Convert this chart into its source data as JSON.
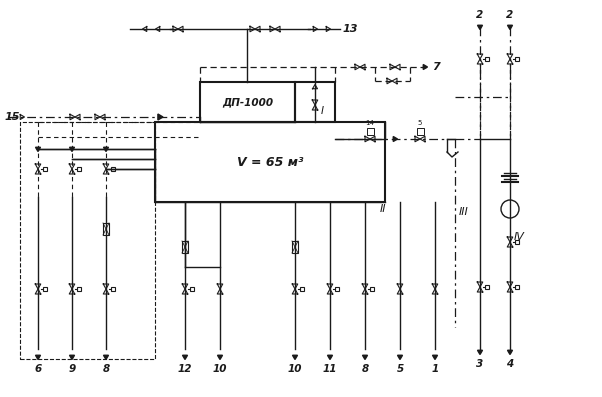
{
  "bg_color": "#ffffff",
  "lc": "#1a1a1a",
  "figsize": [
    6.02,
    3.97
  ],
  "dpi": 100,
  "labels": {
    "dp1000": "ДП-1000",
    "v65": "V = 65 м³",
    "I": "I",
    "II": "II",
    "III": "III",
    "IV": "IV",
    "13": "13",
    "7": "7",
    "15": "15",
    "14": "14",
    "2a": "2",
    "2b": "2",
    "6": "6",
    "9": "9",
    "8a": "8",
    "12": "12",
    "10a": "10",
    "10b": "10",
    "11": "11",
    "8b": "8",
    "5": "5",
    "1": "1",
    "3": "3",
    "4": "4"
  }
}
